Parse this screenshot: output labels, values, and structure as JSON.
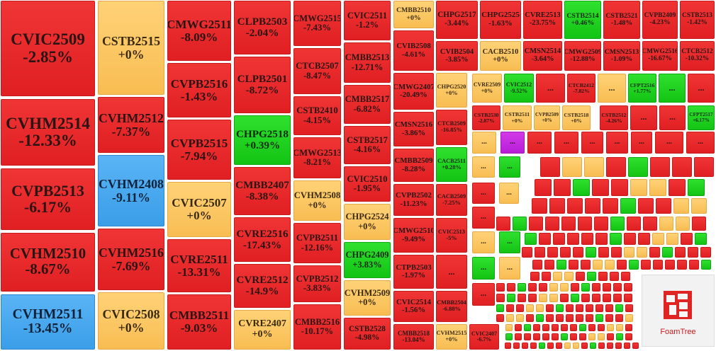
{
  "tiles": [
    {
      "name": "CVIC2509",
      "change": "-2.85%",
      "color": "red"
    },
    {
      "name": "CVHM2514",
      "change": "-12.33%",
      "color": "red"
    },
    {
      "name": "CVPB2513",
      "change": "-6.17%",
      "color": "red"
    },
    {
      "name": "CVHM2510",
      "change": "-8.67%",
      "color": "red"
    },
    {
      "name": "CVHM2511",
      "change": "-13.45%",
      "color": "blue"
    },
    {
      "name": "CSTB2515",
      "change": "+0%",
      "color": "yellow"
    },
    {
      "name": "CVHM2512",
      "change": "-7.37%",
      "color": "red"
    },
    {
      "name": "CVHM2408",
      "change": "-9.11%",
      "color": "blue"
    },
    {
      "name": "CVHM2516",
      "change": "-7.69%",
      "color": "red"
    },
    {
      "name": "CVIC2508",
      "change": "+0%",
      "color": "yellow"
    },
    {
      "name": "CMWG2511",
      "change": "-8.09%",
      "color": "red"
    },
    {
      "name": "CVPB2516",
      "change": "-1.43%",
      "color": "red"
    },
    {
      "name": "CVPB2515",
      "change": "-7.94%",
      "color": "red"
    },
    {
      "name": "CVIC2507",
      "change": "+0%",
      "color": "yellow"
    },
    {
      "name": "CVRE2511",
      "change": "-13.31%",
      "color": "red"
    },
    {
      "name": "CMBB2511",
      "change": "-9.03%",
      "color": "red"
    },
    {
      "name": "CLPB2503",
      "change": "-2.04%",
      "color": "red"
    },
    {
      "name": "CLPB2501",
      "change": "-8.72%",
      "color": "red"
    },
    {
      "name": "CHPG2518",
      "change": "+0.39%",
      "color": "green"
    },
    {
      "name": "CMBB2407",
      "change": "-8.38%",
      "color": "red"
    },
    {
      "name": "CVRE2516",
      "change": "-17.43%",
      "color": "red"
    },
    {
      "name": "CVRE2512",
      "change": "-14.9%",
      "color": "red"
    },
    {
      "name": "CVRE2407",
      "change": "+0%",
      "color": "yellow"
    },
    {
      "name": "CMWG2515",
      "change": "-7.43%",
      "color": "red"
    },
    {
      "name": "CTCB2507",
      "change": "-8.47%",
      "color": "red"
    },
    {
      "name": "CSTB2410",
      "change": "-4.15%",
      "color": "red"
    },
    {
      "name": "CMWG2513",
      "change": "-8.21%",
      "color": "red"
    },
    {
      "name": "CVHM2508",
      "change": "+0%",
      "color": "yellow"
    },
    {
      "name": "CVPB2511",
      "change": "-12.16%",
      "color": "red"
    },
    {
      "name": "CVPB2512",
      "change": "-3.83%",
      "color": "red"
    },
    {
      "name": "CMBB2516",
      "change": "-10.17%",
      "color": "red"
    },
    {
      "name": "CVIC2511",
      "change": "-1.2%",
      "color": "red"
    },
    {
      "name": "CMBB2513",
      "change": "-12.71%",
      "color": "red"
    },
    {
      "name": "CMBB2517",
      "change": "-6.82%",
      "color": "red"
    },
    {
      "name": "CSTB2517",
      "change": "-4.16%",
      "color": "red"
    },
    {
      "name": "CVIC2510",
      "change": "-1.95%",
      "color": "red"
    },
    {
      "name": "CHPG2524",
      "change": "+0%",
      "color": "yellow"
    },
    {
      "name": "CHPG2409",
      "change": "+3.83%",
      "color": "green"
    },
    {
      "name": "CVHM2509",
      "change": "+0%",
      "color": "yellow"
    },
    {
      "name": "CSTB2528",
      "change": "-4.98%",
      "color": "red"
    },
    {
      "name": "CMBB2510",
      "change": "+0%",
      "color": "yellow"
    },
    {
      "name": "CVIB2508",
      "change": "-4.61%",
      "color": "red"
    },
    {
      "name": "CMWG2407",
      "change": "-20.49%",
      "color": "red"
    },
    {
      "name": "CMSN2516",
      "change": "-3.86%",
      "color": "red"
    },
    {
      "name": "CMBB2509",
      "change": "-8.28%",
      "color": "red"
    },
    {
      "name": "CVPB2502",
      "change": "-11.23%",
      "color": "red"
    },
    {
      "name": "CMWG2510",
      "change": "-9.49%",
      "color": "red"
    },
    {
      "name": "CTPB2503",
      "change": "-1.97%",
      "color": "red"
    },
    {
      "name": "CVIC2514",
      "change": "-1.56%",
      "color": "red"
    },
    {
      "name": "CMBB2518",
      "change": "-13.04%",
      "color": "red"
    },
    {
      "name": "CHPG2517",
      "change": "-3.44%",
      "color": "red"
    },
    {
      "name": "CHPG2525",
      "change": "-1.63%",
      "color": "red"
    },
    {
      "name": "CVRE2513",
      "change": "-23.75%",
      "color": "red"
    },
    {
      "name": "CSTB2514",
      "change": "+0.46%",
      "color": "green"
    },
    {
      "name": "CSTB2521",
      "change": "-1.48%",
      "color": "red"
    },
    {
      "name": "CVPB2409",
      "change": "-4.23%",
      "color": "red"
    },
    {
      "name": "CSTB2513",
      "change": "-1.42%",
      "color": "red"
    },
    {
      "name": "CVIB2504",
      "change": "-3.85%",
      "color": "red"
    },
    {
      "name": "CACB2510",
      "change": "+0%",
      "color": "yellow"
    },
    {
      "name": "CMSN2514",
      "change": "-3.64%",
      "color": "red"
    },
    {
      "name": "CMWG2509",
      "change": "-12.88%",
      "color": "red"
    },
    {
      "name": "CMSN2513",
      "change": "-1.09%",
      "color": "red"
    },
    {
      "name": "CMWG2516",
      "change": "-16.67%",
      "color": "red"
    },
    {
      "name": "CTCB2512",
      "change": "-10.32%",
      "color": "red"
    },
    {
      "name": "CHPG2520",
      "change": "+0%",
      "color": "yellow"
    },
    {
      "name": "CTCB2509",
      "change": "-16.85%",
      "color": "red"
    },
    {
      "name": "CACB2511",
      "change": "+0.28%",
      "color": "green"
    },
    {
      "name": "CACB2509",
      "change": "-7.25%",
      "color": "red"
    },
    {
      "name": "CVIC2513",
      "change": "-5%",
      "color": "red"
    },
    {
      "name": "...",
      "color": "red"
    },
    {
      "name": "CMBB2504",
      "change": "-6.88%",
      "color": "red"
    },
    {
      "name": "CVHM2515",
      "change": "+0%",
      "color": "yellow"
    },
    {
      "name": "CVIC2407",
      "change": "-6.7%",
      "color": "red"
    },
    {
      "name": "CVRE2509",
      "change": "+0%",
      "color": "yellow"
    },
    {
      "name": "CVIC2512",
      "change": "-9.52%",
      "color": "green"
    },
    {
      "name": "...",
      "color": "red"
    },
    {
      "name": "CTCB2412",
      "change": "-7.82%",
      "color": "red"
    },
    {
      "name": "...",
      "color": "yellow"
    },
    {
      "name": "CFPT2516",
      "change": "+1.77%",
      "color": "green"
    },
    {
      "name": "...",
      "color": "green"
    },
    {
      "name": "...",
      "color": "red"
    },
    {
      "name": "CSTB2530",
      "change": "-2.87%",
      "color": "red"
    },
    {
      "name": "CSTB2511",
      "change": "+0%",
      "color": "yellow"
    },
    {
      "name": "CVPB2509",
      "change": "+0%",
      "color": "yellow"
    },
    {
      "name": "CSTB2518",
      "change": "+0%",
      "color": "yellow"
    },
    {
      "name": "CSTB2512",
      "change": "-4.26%",
      "color": "red"
    },
    {
      "name": "...",
      "color": "red"
    },
    {
      "name": "...",
      "color": "red"
    },
    {
      "name": "CFPT2517",
      "change": "+6.17%",
      "color": "green"
    },
    {
      "name": "...",
      "color": "yellow"
    },
    {
      "name": "...",
      "color": "purple"
    },
    {
      "name": "...",
      "color": "red"
    },
    {
      "name": "...",
      "color": "red"
    },
    {
      "name": "...",
      "color": "red"
    },
    {
      "name": "...",
      "color": "red"
    },
    {
      "name": "...",
      "color": "red"
    },
    {
      "name": "...",
      "color": "red"
    },
    {
      "name": "...",
      "color": "red"
    },
    {
      "name": "...",
      "color": "yellow"
    },
    {
      "name": "...",
      "color": "green"
    },
    {
      "name": "...",
      "color": "red"
    },
    {
      "name": "...",
      "color": "yellow"
    },
    {
      "name": "...",
      "color": "red"
    },
    {
      "name": "...",
      "color": "yellow"
    },
    {
      "name": "...",
      "color": "green"
    },
    {
      "name": "...",
      "color": "green"
    },
    {
      "name": "...",
      "color": "yellow"
    },
    {
      "name": "...",
      "color": "red"
    }
  ],
  "logo": "FoamTree"
}
